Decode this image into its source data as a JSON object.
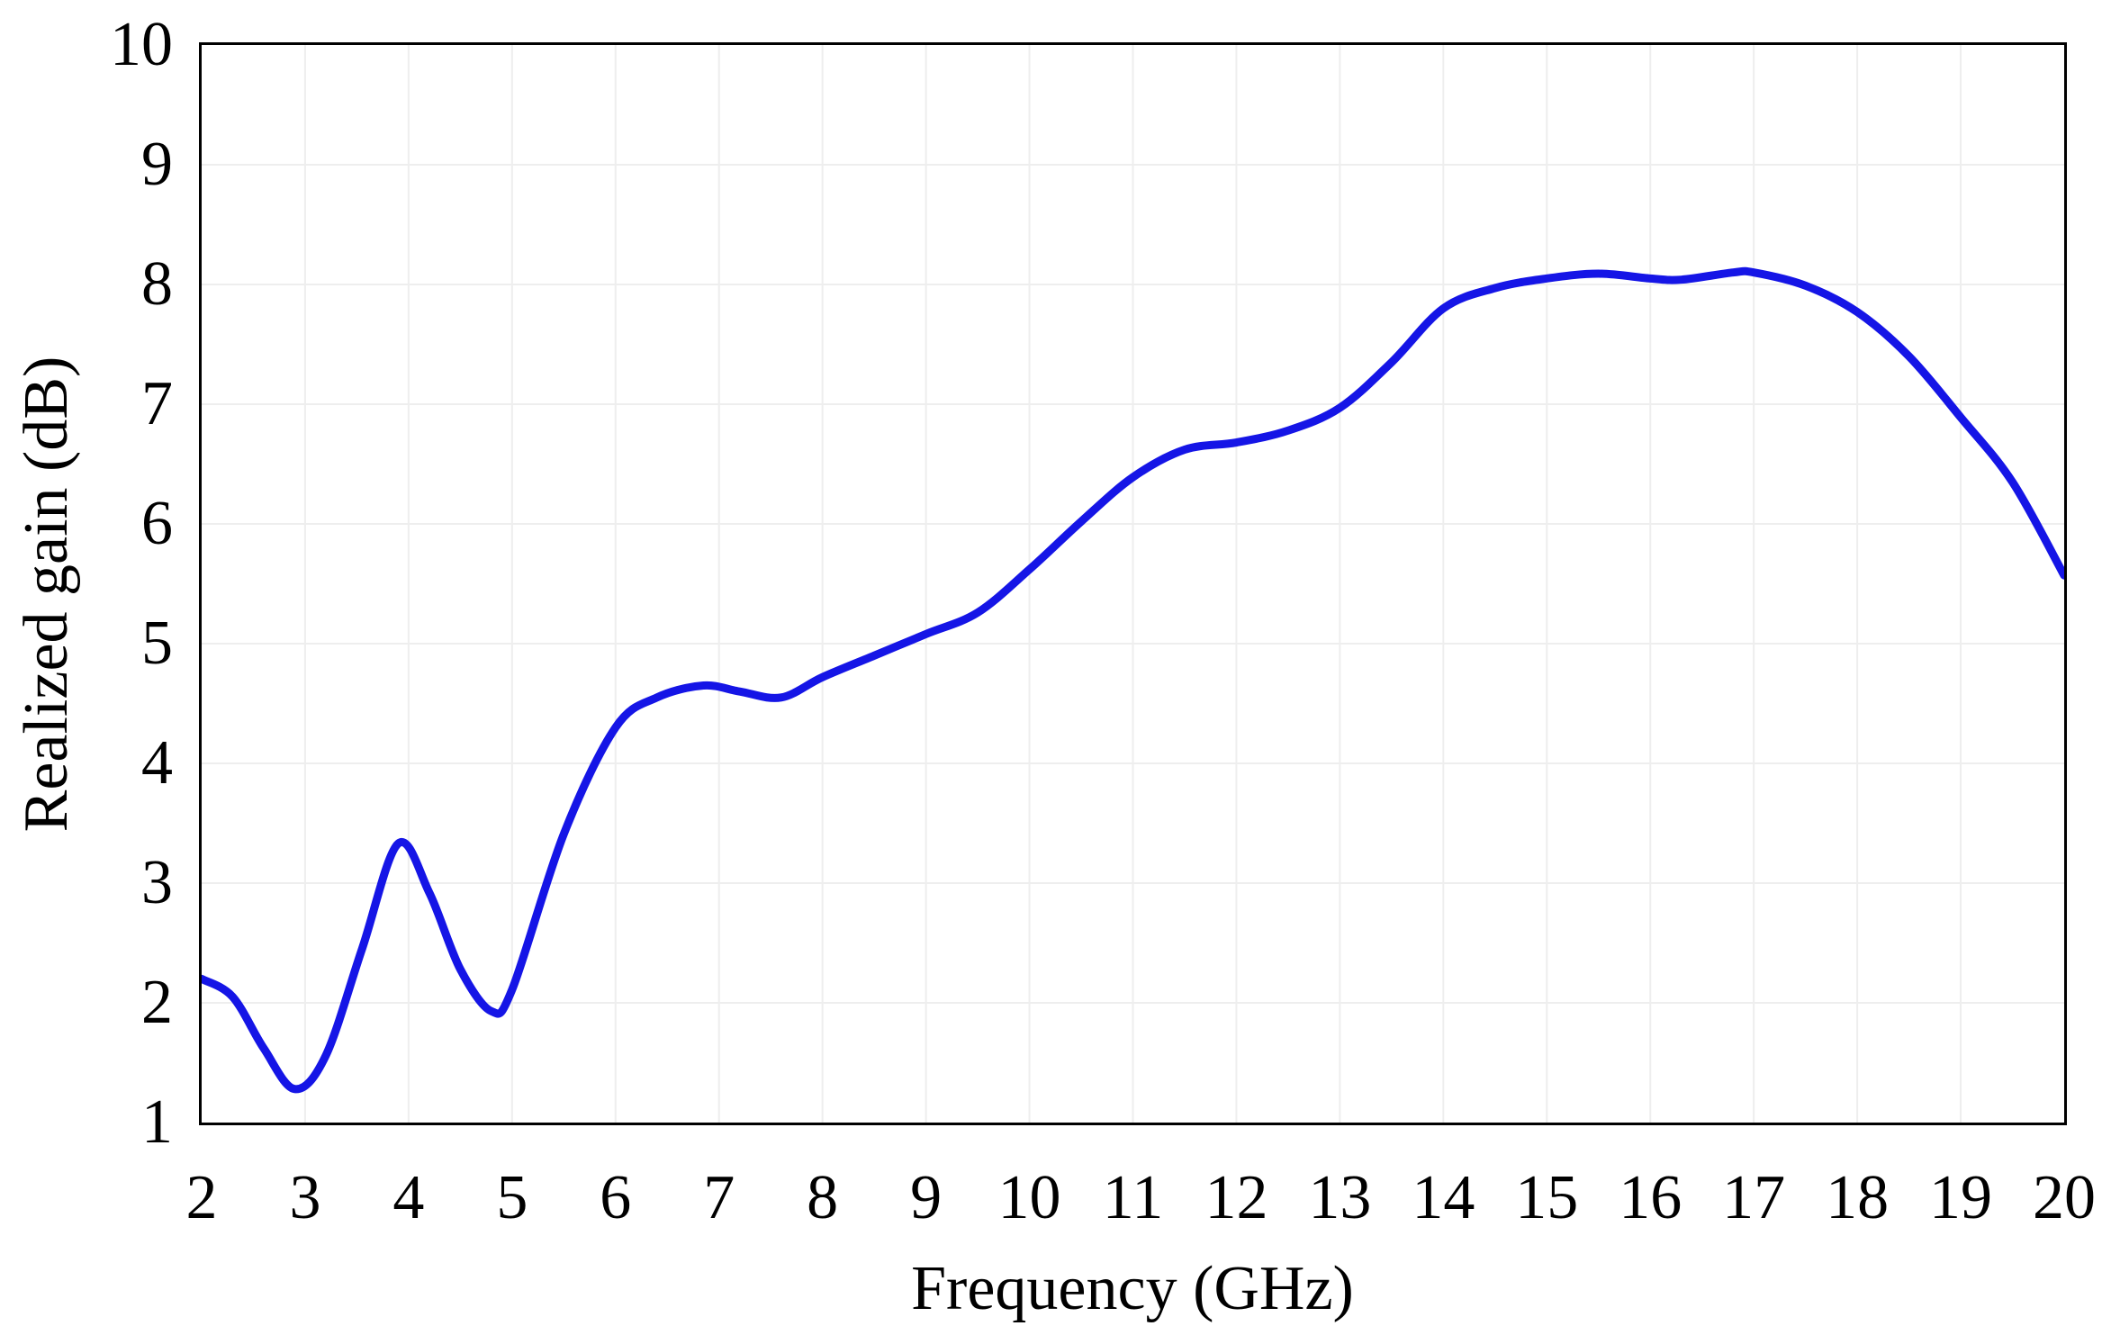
{
  "chart_data": {
    "type": "line",
    "title": "",
    "xlabel": "Frequency (GHz)",
    "ylabel": "Realized gain (dB)",
    "x_range": [
      2,
      20
    ],
    "y_range": [
      1,
      10
    ],
    "x_ticks": [
      2,
      3,
      4,
      5,
      6,
      7,
      8,
      9,
      10,
      11,
      12,
      13,
      14,
      15,
      16,
      17,
      18,
      19,
      20
    ],
    "x_tick_labels": [
      "2",
      "3",
      "4",
      "5",
      "6",
      "7",
      "8",
      "9",
      "10",
      "11",
      "12",
      "13",
      "14",
      "15",
      "16",
      "17",
      "18",
      "19",
      "20"
    ],
    "y_ticks": [
      1,
      2,
      3,
      4,
      5,
      6,
      7,
      8,
      9,
      10
    ],
    "y_tick_labels": [
      "1",
      "2",
      "3",
      "4",
      "5",
      "6",
      "7",
      "8",
      "9",
      "10"
    ],
    "grid": true,
    "grid_color": "#eeeeee",
    "axis_color": "#000000",
    "legend_position": "none",
    "series": [
      {
        "name": "Realized gain",
        "color": "#1515e6",
        "stroke_width": 9,
        "x": [
          2.0,
          2.3,
          2.6,
          2.9,
          3.2,
          3.55,
          3.9,
          4.2,
          4.5,
          4.8,
          5.0,
          5.5,
          6.0,
          6.4,
          6.85,
          7.2,
          7.6,
          8.0,
          8.5,
          9.0,
          9.5,
          10.0,
          10.5,
          11.0,
          11.5,
          12.0,
          12.5,
          13.0,
          13.5,
          14.0,
          14.5,
          15.0,
          15.5,
          16.0,
          16.3,
          16.8,
          17.0,
          17.5,
          18.0,
          18.5,
          19.0,
          19.5,
          20.0
        ],
        "y": [
          2.2,
          2.05,
          1.62,
          1.28,
          1.56,
          2.45,
          3.33,
          2.92,
          2.28,
          1.93,
          2.11,
          3.41,
          4.3,
          4.55,
          4.65,
          4.6,
          4.55,
          4.72,
          4.9,
          5.08,
          5.26,
          5.62,
          6.02,
          6.39,
          6.62,
          6.68,
          6.78,
          6.97,
          7.35,
          7.8,
          7.97,
          8.05,
          8.09,
          8.05,
          8.04,
          8.1,
          8.1,
          7.99,
          7.77,
          7.4,
          6.89,
          6.35,
          5.57
        ]
      }
    ]
  },
  "layout_note": "single line chart, no legend, boxed plot with light gray unit gridlines"
}
